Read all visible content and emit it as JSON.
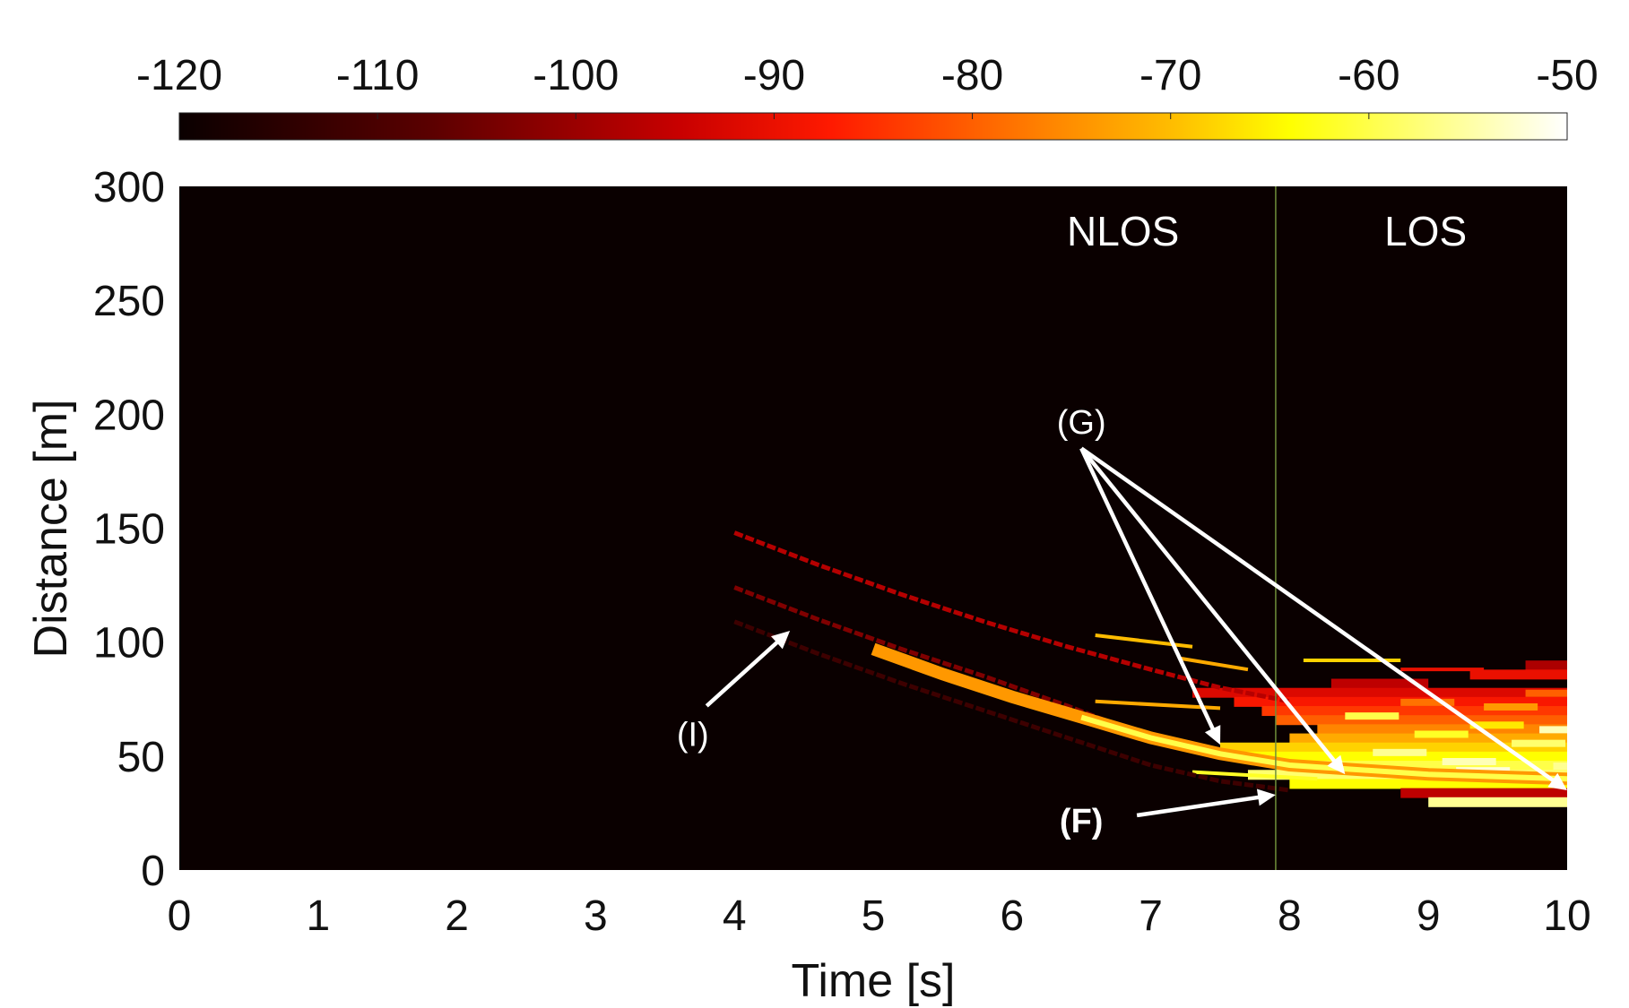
{
  "chart_data": {
    "type": "heatmap",
    "xlabel": "Time [s]",
    "ylabel": "Distance [m]",
    "xlim": [
      0,
      10
    ],
    "ylim": [
      0,
      300
    ],
    "xticks": [
      "0",
      "1",
      "2",
      "3",
      "4",
      "5",
      "6",
      "7",
      "8",
      "9",
      "10"
    ],
    "yticks": [
      "0",
      "50",
      "100",
      "150",
      "200",
      "250",
      "300"
    ],
    "colorbar": {
      "range": [
        -120,
        -50
      ],
      "ticks": [
        "-120",
        "-110",
        "-100",
        "-90",
        "-80",
        "-70",
        "-60",
        "-50"
      ],
      "colormap": "hot",
      "placement": "top"
    },
    "background_value": -120,
    "regions": [
      {
        "label": "NLOS",
        "x_from": 0,
        "x_to": 7.9
      },
      {
        "label": "LOS",
        "x_from": 7.9,
        "x_to": 10
      }
    ],
    "boundary_x": 7.9,
    "boundary_color": "#6f8f3a",
    "traces": [
      {
        "name": "upper-trace",
        "value": -97,
        "points": [
          [
            4.0,
            148
          ],
          [
            4.6,
            134
          ],
          [
            5.2,
            121
          ],
          [
            5.8,
            109
          ],
          [
            6.4,
            98
          ],
          [
            7.0,
            88
          ],
          [
            7.5,
            80
          ],
          [
            8.0,
            74
          ]
        ]
      },
      {
        "name": "middle-trace",
        "value": -103,
        "points": [
          [
            4.0,
            124
          ],
          [
            4.6,
            110
          ],
          [
            5.2,
            97
          ],
          [
            5.8,
            85
          ],
          [
            6.4,
            72
          ],
          [
            7.0,
            58
          ],
          [
            7.5,
            50
          ],
          [
            8.0,
            45
          ]
        ]
      },
      {
        "name": "lower-trace",
        "value": -112,
        "points": [
          [
            4.0,
            109
          ],
          [
            4.6,
            95
          ],
          [
            5.2,
            82
          ],
          [
            5.8,
            70
          ],
          [
            6.4,
            58
          ],
          [
            7.0,
            46
          ],
          [
            7.5,
            39
          ],
          [
            8.0,
            35
          ]
        ]
      },
      {
        "name": "bright-trace",
        "value": -74,
        "points": [
          [
            5.0,
            97
          ],
          [
            5.5,
            86
          ],
          [
            6.0,
            76
          ],
          [
            6.5,
            67
          ],
          [
            7.0,
            58
          ],
          [
            7.5,
            51
          ],
          [
            8.0,
            46
          ],
          [
            9.0,
            42
          ],
          [
            10.0,
            40
          ]
        ]
      }
    ],
    "annotations": [
      {
        "label": "(I)",
        "bold": false,
        "text_at": [
          3.7,
          60
        ],
        "arrows": [
          [
            [
              3.8,
              72
            ],
            [
              4.4,
              105
            ]
          ]
        ]
      },
      {
        "label": "(G)",
        "bold": false,
        "text_at": [
          6.5,
          197
        ],
        "arrows": [
          [
            [
              6.5,
              185
            ],
            [
              7.5,
              55
            ]
          ],
          [
            [
              6.5,
              185
            ],
            [
              8.4,
              42
            ]
          ],
          [
            [
              6.5,
              185
            ],
            [
              10.0,
              35
            ]
          ]
        ]
      },
      {
        "label": "(F)",
        "bold": true,
        "text_at": [
          6.5,
          22
        ],
        "arrows": [
          [
            [
              6.9,
              24
            ],
            [
              7.9,
              33
            ]
          ]
        ]
      }
    ]
  }
}
